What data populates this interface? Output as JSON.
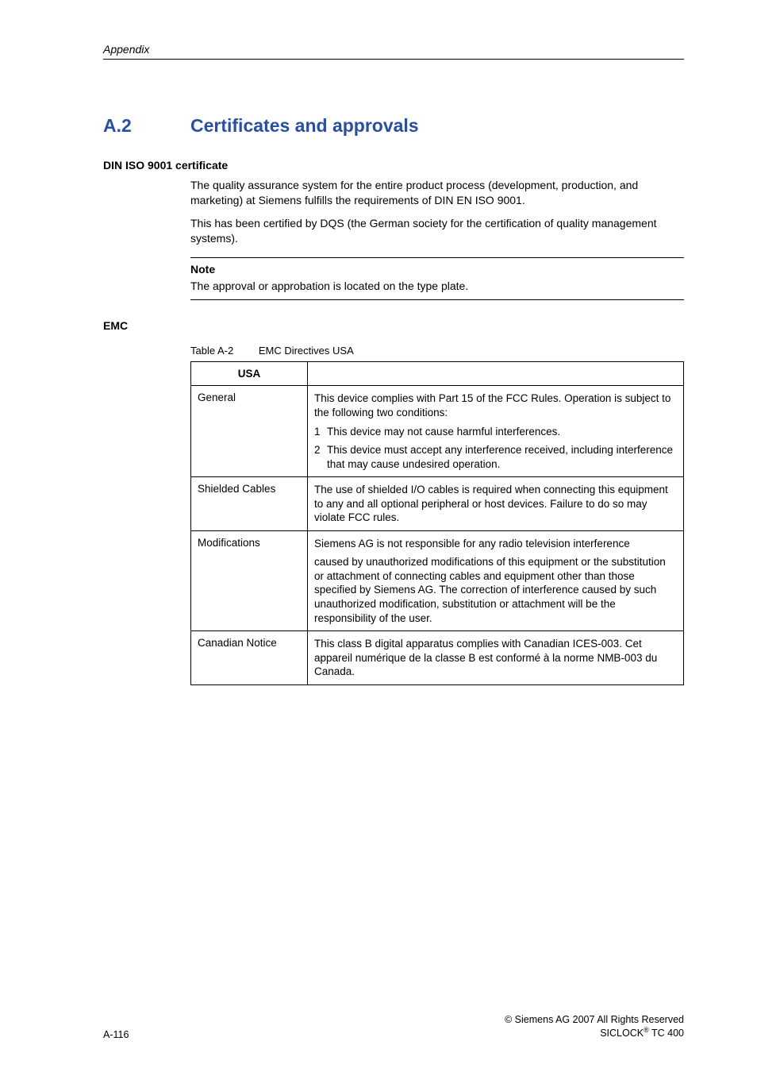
{
  "running_head": "Appendix",
  "section": {
    "number": "A.2",
    "title": "Certificates and approvals"
  },
  "din": {
    "heading": "DIN ISO 9001 certificate",
    "para1": "The quality assurance system for the entire product process (development, production, and marketing) at Siemens fulfills the requirements of DIN EN ISO 9001.",
    "para2": "This has been certified by DQS (the German society for the certification of quality management systems)."
  },
  "note": {
    "label": "Note",
    "text": "The approval or approbation is located on the type plate."
  },
  "emc": {
    "heading": "EMC",
    "caption_label": "Table A-2",
    "caption_text": "EMC Directives USA",
    "col_header": "USA",
    "rows": {
      "general": {
        "label": "General",
        "intro": "This device complies with Part 15 of the FCC Rules. Operation is subject to the following two conditions:",
        "item1_n": "1",
        "item1": "This device may not cause harmful interferences.",
        "item2_n": "2",
        "item2": "This device must accept any interference received, including interference that may cause undesired operation."
      },
      "shielded": {
        "label": "Shielded Cables",
        "text": "The use of shielded I/O cables is required when connecting this equipment to any and all optional peripheral or host devices. Failure to do so may violate FCC rules."
      },
      "mods": {
        "label": "Modifications",
        "p1": "Siemens AG is not responsible for any radio television interference",
        "p2": "caused by unauthorized modifications of this equipment or the substitution or attachment of connecting cables and equipment other than those specified by Siemens AG. The correction of interference caused by such unauthorized modification, substitution or attachment will be the responsibility of the user."
      },
      "canadian": {
        "label": "Canadian Notice",
        "text": "This class B digital apparatus complies with Canadian ICES-003. Cet appareil numérique de la classe B est conformé à la norme NMB-003 du Canada."
      }
    }
  },
  "footer": {
    "page": "A-116",
    "copyright": "© Siemens AG 2007 All Rights Reserved",
    "product_a": "SICLOCK",
    "product_reg": "®",
    "product_b": " TC 400"
  }
}
